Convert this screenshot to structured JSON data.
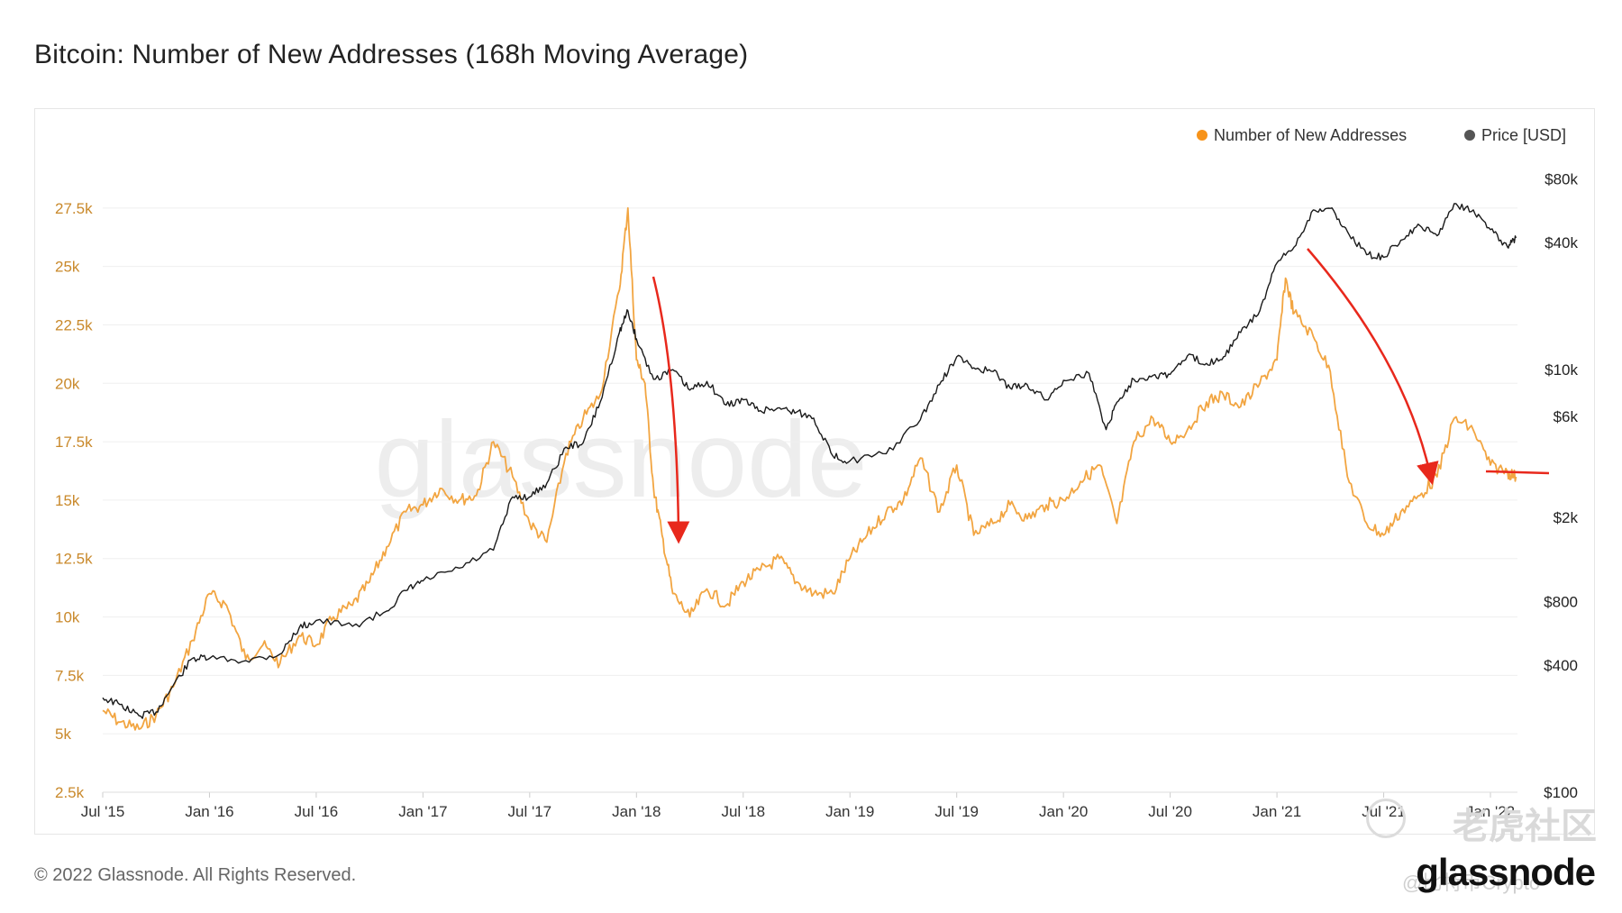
{
  "page": {
    "title": "Bitcoin: Number of New Addresses (168h Moving Average)",
    "copyright": "© 2022 Glassnode. All Rights Reserved.",
    "logo_text": "glassnode",
    "watermark_text": "glassnode",
    "cn_watermark": "老虎社区",
    "cn_watermark_sub": "@比特币Crypto"
  },
  "colors": {
    "addresses": "#f7931a",
    "addresses_line": "#f2a541",
    "price": "#1a1a1a",
    "annotation": "#e8281c",
    "grid": "#efefef",
    "left_axis_text": "#c9892b",
    "right_axis_text": "#222222"
  },
  "chart_data": {
    "type": "line",
    "title": "Bitcoin: Number of New Addresses (168h Moving Average)",
    "legend_position": "top-right",
    "grid": true,
    "x_ticks": [
      "Jul '15",
      "Jan '16",
      "Jul '16",
      "Jan '17",
      "Jul '17",
      "Jan '18",
      "Jul '18",
      "Jan '19",
      "Jul '19",
      "Jan '20",
      "Jul '20",
      "Jan '21",
      "Jul '21",
      "Jan '22"
    ],
    "y_left": {
      "ticks": [
        "2.5k",
        "5k",
        "7.5k",
        "10k",
        "12.5k",
        "15k",
        "17.5k",
        "20k",
        "22.5k",
        "25k",
        "27.5k"
      ],
      "tick_values": [
        2500,
        5000,
        7500,
        10000,
        12500,
        15000,
        17500,
        20000,
        22500,
        25000,
        27500
      ],
      "range": [
        2500,
        30000
      ]
    },
    "y_right": {
      "scale": "log",
      "ticks": [
        "$100",
        "$400",
        "$800",
        "$2k",
        "$6k",
        "$10k",
        "$40k",
        "$80k"
      ],
      "tick_values": [
        100,
        400,
        800,
        2000,
        6000,
        10000,
        40000,
        80000
      ]
    },
    "series": [
      {
        "name": "Number of New Addresses",
        "axis": "left",
        "x": [
          2015.5,
          2015.58,
          2015.67,
          2015.75,
          2015.83,
          2015.92,
          2016.0,
          2016.08,
          2016.17,
          2016.25,
          2016.33,
          2016.42,
          2016.5,
          2016.58,
          2016.67,
          2016.75,
          2016.83,
          2016.92,
          2017.0,
          2017.08,
          2017.17,
          2017.25,
          2017.33,
          2017.42,
          2017.5,
          2017.58,
          2017.67,
          2017.75,
          2017.83,
          2017.92,
          2017.96,
          2018.0,
          2018.04,
          2018.08,
          2018.12,
          2018.17,
          2018.25,
          2018.33,
          2018.42,
          2018.5,
          2018.58,
          2018.67,
          2018.75,
          2018.83,
          2018.92,
          2019.0,
          2019.08,
          2019.17,
          2019.25,
          2019.33,
          2019.42,
          2019.5,
          2019.58,
          2019.67,
          2019.75,
          2019.83,
          2019.92,
          2020.0,
          2020.08,
          2020.17,
          2020.25,
          2020.33,
          2020.42,
          2020.5,
          2020.58,
          2020.67,
          2020.75,
          2020.83,
          2020.92,
          2021.0,
          2021.04,
          2021.08,
          2021.17,
          2021.25,
          2021.33,
          2021.42,
          2021.5,
          2021.58,
          2021.67,
          2021.75,
          2021.83,
          2021.92,
          2022.0,
          2022.08,
          2022.12
        ],
        "values": [
          6000,
          5500,
          5200,
          5800,
          7000,
          9000,
          11000,
          10500,
          8200,
          8800,
          8000,
          9200,
          8800,
          10000,
          10500,
          11500,
          13000,
          14500,
          14800,
          15500,
          15000,
          15200,
          17500,
          16000,
          14000,
          13200,
          17000,
          18500,
          19500,
          24000,
          27500,
          21000,
          20000,
          15500,
          13500,
          11000,
          10000,
          11200,
          10500,
          11500,
          12000,
          12500,
          11500,
          11000,
          11000,
          12500,
          13500,
          14500,
          15000,
          16800,
          14500,
          16500,
          13500,
          14000,
          14800,
          14200,
          14800,
          15000,
          15800,
          16500,
          14000,
          17500,
          18500,
          17500,
          18000,
          19200,
          19500,
          19000,
          20000,
          21000,
          24500,
          23000,
          22000,
          20500,
          16000,
          14000,
          13500,
          14500,
          15200,
          16000,
          18500,
          18000,
          16500,
          16200,
          16000
        ]
      },
      {
        "name": "Price [USD]",
        "axis": "right",
        "x": [
          2015.5,
          2015.58,
          2015.67,
          2015.75,
          2015.83,
          2015.92,
          2016.0,
          2016.17,
          2016.33,
          2016.42,
          2016.5,
          2016.67,
          2016.83,
          2016.92,
          2017.0,
          2017.17,
          2017.33,
          2017.42,
          2017.5,
          2017.58,
          2017.67,
          2017.75,
          2017.83,
          2017.92,
          2017.96,
          2018.0,
          2018.08,
          2018.17,
          2018.25,
          2018.33,
          2018.42,
          2018.5,
          2018.58,
          2018.67,
          2018.75,
          2018.83,
          2018.92,
          2019.0,
          2019.17,
          2019.33,
          2019.42,
          2019.5,
          2019.58,
          2019.67,
          2019.75,
          2019.83,
          2019.92,
          2020.0,
          2020.12,
          2020.2,
          2020.25,
          2020.33,
          2020.42,
          2020.5,
          2020.58,
          2020.67,
          2020.75,
          2020.83,
          2020.92,
          2021.0,
          2021.08,
          2021.17,
          2021.25,
          2021.33,
          2021.42,
          2021.5,
          2021.58,
          2021.67,
          2021.75,
          2021.83,
          2021.92,
          2022.0,
          2022.08,
          2022.12
        ],
        "values": [
          280,
          260,
          230,
          240,
          320,
          430,
          430,
          420,
          450,
          600,
          650,
          610,
          720,
          900,
          1000,
          1150,
          1400,
          2500,
          2500,
          2900,
          4300,
          4500,
          7000,
          15000,
          19000,
          14000,
          9000,
          10000,
          8000,
          8800,
          6800,
          7200,
          6400,
          6600,
          6300,
          5900,
          3900,
          3700,
          4000,
          5800,
          8500,
          11500,
          10200,
          9800,
          8200,
          8500,
          7200,
          8900,
          9600,
          5200,
          7000,
          9000,
          9400,
          9500,
          11600,
          10700,
          11500,
          15000,
          19000,
          32000,
          38000,
          57000,
          58000,
          45000,
          35000,
          34000,
          41000,
          48000,
          43000,
          61000,
          57000,
          46000,
          38000,
          42000
        ]
      }
    ],
    "annotations": [
      "decline arrow after Jan '18 peak",
      "decline arrow after Jan '21 peak",
      "horizontal level line Jan '22"
    ]
  }
}
